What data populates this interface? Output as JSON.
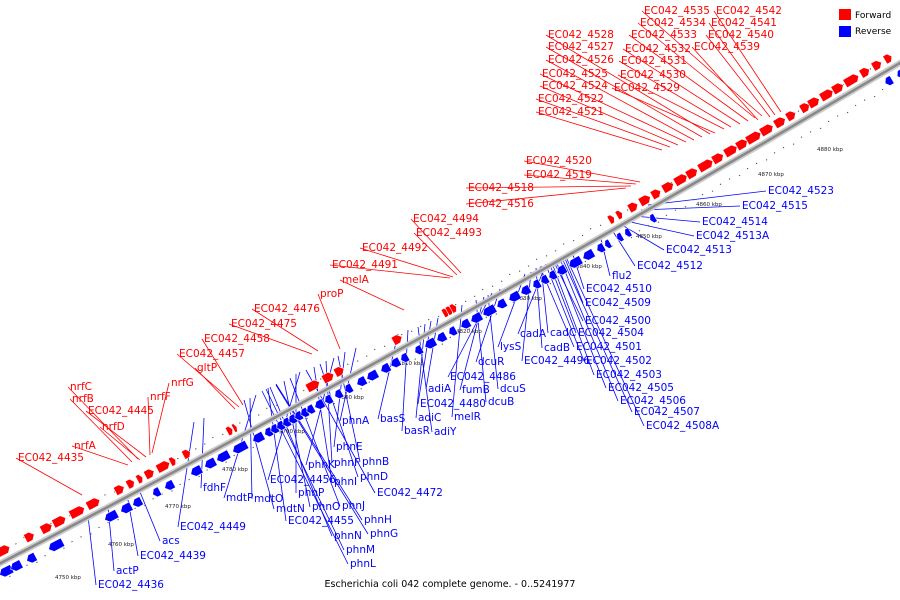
{
  "caption": "Escherichia coli 042 complete genome. - 0..5241977",
  "legend": [
    {
      "label": "Forward",
      "color": "#ff0000"
    },
    {
      "label": "Reverse",
      "color": "#0000ff"
    }
  ],
  "colors": {
    "forward": "#ff0000",
    "reverse": "#0000ff",
    "backbone": "#888888"
  },
  "ticks": [
    "4750 kbp",
    "4760 kbp",
    "4770 kbp",
    "4780 kbp",
    "4790 kbp",
    "4800 kbp",
    "4810 kbp",
    "4820 kbp",
    "4830 kbp",
    "4840 kbp",
    "4850 kbp",
    "4860 kbp",
    "4870 kbp",
    "4880 kbp"
  ],
  "forward_labels": [
    "EC042_4542",
    "EC042_4535",
    "EC042_4541",
    "EC042_4534",
    "EC042_4540",
    "EC042_4533",
    "EC042_4528",
    "EC042_4532",
    "EC042_4539",
    "EC042_4527",
    "EC042_4531",
    "EC042_4526",
    "EC042_4530",
    "EC042_4525",
    "EC042_4529",
    "EC042_4524",
    "EC042_4522",
    "EC042_4521",
    "EC042_4520",
    "EC042_4519",
    "EC042_4518",
    "EC042_4516",
    "EC042_4494",
    "EC042_4493",
    "EC042_4492",
    "EC042_4491",
    "melA",
    "proP",
    "EC042_4476",
    "EC042_4475",
    "EC042_4458",
    "EC042_4457",
    "gltP",
    "nrfC",
    "nrfG",
    "nrfB",
    "nrfF",
    "EC042_4445",
    "nrfD",
    "nrfA",
    "EC042_4435"
  ],
  "reverse_labels": [
    "EC042_4523",
    "EC042_4515",
    "EC042_4514",
    "EC042_4513A",
    "EC042_4513",
    "EC042_4512",
    "flu2",
    "EC042_4510",
    "EC042_4509",
    "EC042_4500",
    "cadA",
    "cadC",
    "EC042_4504",
    "cadB",
    "EC042_4501",
    "lysS",
    "EC042_4502",
    "EC042_4496",
    "dcuR",
    "EC042_4503",
    "EC042_4486",
    "fumB",
    "dcuS",
    "EC042_4505",
    "dcuB",
    "EC042_4506",
    "adiA",
    "EC042_4480",
    "melR",
    "EC042_4507",
    "adiC",
    "adiY",
    "EC042_4508A",
    "basS",
    "basR",
    "phnA",
    "phnE",
    "phnB",
    "phnK",
    "phnF",
    "phnD",
    "phnI",
    "EC042_4456",
    "EC042_4472",
    "phnP",
    "phnJ",
    "phnO",
    "phnH",
    "mdtP",
    "mdtO",
    "fdhF",
    "EC042_4455",
    "phnG",
    "EC042_4449",
    "mdtN",
    "phnN",
    "acs",
    "phnM",
    "EC042_4439",
    "phnL",
    "actP",
    "EC042_4436"
  ]
}
